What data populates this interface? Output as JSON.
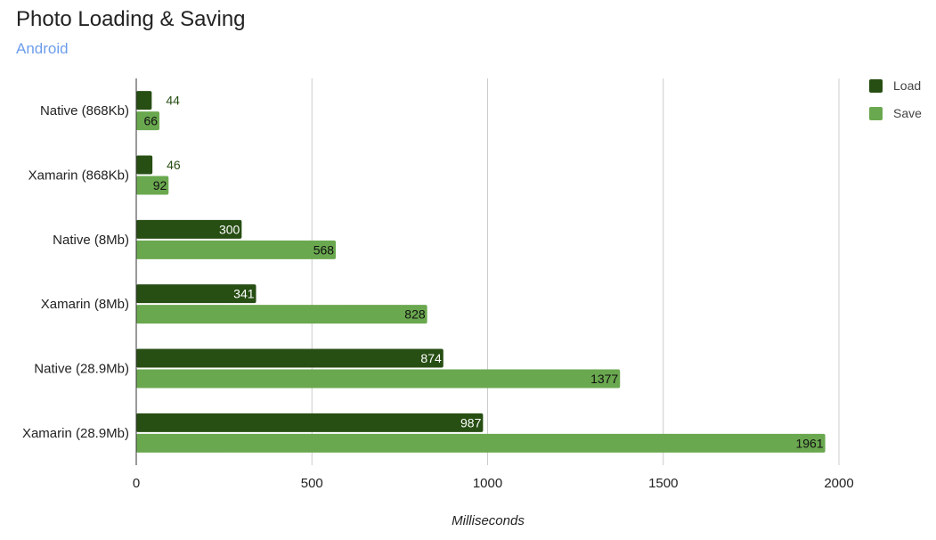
{
  "colors": {
    "load": "#274e13",
    "save": "#6aa84f",
    "subtitle": "#6d9eeb",
    "grid": "#cccccc",
    "axis": "#333333"
  },
  "chart_data": {
    "type": "bar",
    "orientation": "horizontal",
    "title": "Photo Loading & Saving",
    "subtitle": "Android",
    "xlabel": "Milliseconds",
    "ylabel": "",
    "xlim": [
      0,
      2000
    ],
    "xticks": [
      0,
      500,
      1000,
      1500,
      2000
    ],
    "grid": true,
    "legend_position": "top-right",
    "categories": [
      "Native (868Kb)",
      "Xamarin (868Kb)",
      "Native (8Mb)",
      "Xamarin (8Mb)",
      "Native (28.9Mb)",
      "Xamarin (28.9Mb)"
    ],
    "series": [
      {
        "name": "Load",
        "values": [
          44,
          46,
          300,
          341,
          874,
          987
        ]
      },
      {
        "name": "Save",
        "values": [
          66,
          92,
          568,
          828,
          1377,
          1961
        ]
      }
    ]
  }
}
